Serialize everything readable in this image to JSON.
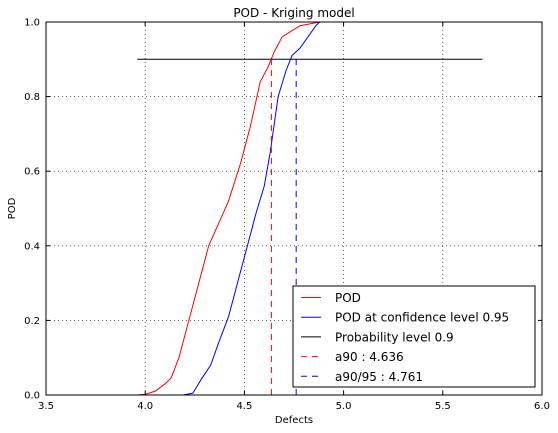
{
  "chart_data": {
    "type": "line",
    "title": "POD - Kriging model",
    "xlabel": "Defects",
    "ylabel": "POD",
    "xlim": [
      3.5,
      6.0
    ],
    "ylim": [
      0.0,
      1.0
    ],
    "xticks": [
      "3.5",
      "4.0",
      "4.5",
      "5.0",
      "5.5",
      "6.0"
    ],
    "yticks": [
      "0.0",
      "0.2",
      "0.4",
      "0.6",
      "0.8",
      "1.0"
    ],
    "grid": true,
    "legend_position": "lower-right",
    "series": [
      {
        "name": "POD",
        "color": "#ff0000",
        "style": "solid",
        "x": [
          3.96,
          4.0,
          4.05,
          4.1,
          4.13,
          4.17,
          4.22,
          4.27,
          4.32,
          4.37,
          4.42,
          4.48,
          4.53,
          4.58,
          4.62,
          4.65,
          4.69,
          4.72,
          4.78,
          4.83,
          4.88,
          4.92,
          4.97,
          5.0
        ],
        "y": [
          0.0,
          0.002,
          0.01,
          0.03,
          0.045,
          0.1,
          0.2,
          0.3,
          0.4,
          0.46,
          0.52,
          0.62,
          0.72,
          0.84,
          0.88,
          0.92,
          0.96,
          0.97,
          0.99,
          0.995,
          1.0,
          1.0,
          1.0,
          1.0
        ]
      },
      {
        "name": "POD at confidence level 0.95",
        "color": "#0000ff",
        "style": "solid",
        "x": [
          3.96,
          4.1,
          4.19,
          4.24,
          4.28,
          4.33,
          4.37,
          4.42,
          4.47,
          4.52,
          4.56,
          4.6,
          4.63,
          4.67,
          4.71,
          4.74,
          4.78,
          4.82,
          4.86,
          4.88,
          4.92,
          5.0
        ],
        "y": [
          0.0,
          0.0,
          0.0,
          0.005,
          0.04,
          0.08,
          0.14,
          0.21,
          0.31,
          0.41,
          0.49,
          0.56,
          0.65,
          0.8,
          0.87,
          0.91,
          0.93,
          0.96,
          0.99,
          1.0,
          1.0,
          1.0
        ]
      },
      {
        "name": "Probability level 0.9",
        "color": "#000000",
        "style": "solid",
        "x": [
          3.96,
          5.7
        ],
        "y": [
          0.9,
          0.9
        ]
      },
      {
        "name": "a90 : 4.636",
        "color": "#ff0000",
        "style": "dashed",
        "x": [
          4.636,
          4.636
        ],
        "y": [
          0.0,
          0.9
        ]
      },
      {
        "name": "a90/95 : 4.761",
        "color": "#0000ff",
        "style": "dashed",
        "x": [
          4.761,
          4.761
        ],
        "y": [
          0.0,
          0.9
        ]
      }
    ]
  }
}
